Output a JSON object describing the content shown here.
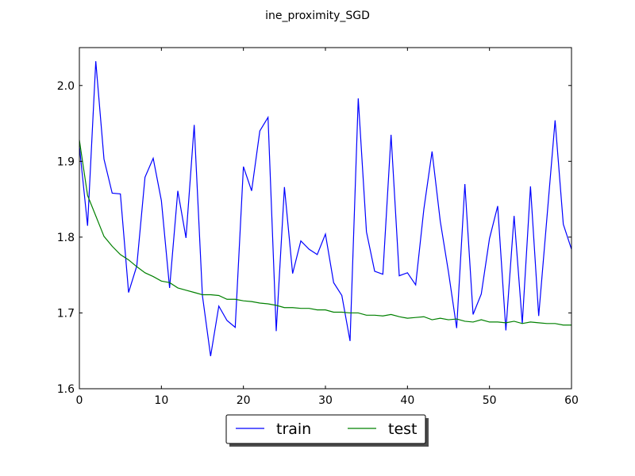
{
  "chart_data": {
    "type": "line",
    "title": "ine_proximity_SGD",
    "xlabel": "",
    "ylabel": "",
    "xlim": [
      0,
      60
    ],
    "ylim": [
      1.6,
      2.05
    ],
    "xticks": [
      0,
      10,
      20,
      30,
      40,
      50,
      60
    ],
    "yticks": [
      1.6,
      1.7,
      1.8,
      1.9,
      2.0
    ],
    "xtick_labels": [
      "0",
      "10",
      "20",
      "30",
      "40",
      "50",
      "60"
    ],
    "ytick_labels": [
      "1.6",
      "1.7",
      "1.8",
      "1.9",
      "2.0"
    ],
    "grid": false,
    "legend_position": "below-center",
    "x": [
      0,
      1,
      2,
      3,
      4,
      5,
      6,
      7,
      8,
      9,
      10,
      11,
      12,
      13,
      14,
      15,
      16,
      17,
      18,
      19,
      20,
      21,
      22,
      23,
      24,
      25,
      26,
      27,
      28,
      29,
      30,
      31,
      32,
      33,
      34,
      35,
      36,
      37,
      38,
      39,
      40,
      41,
      42,
      43,
      44,
      45,
      46,
      47,
      48,
      49,
      50,
      51,
      52,
      53,
      54,
      55,
      56,
      57,
      58,
      59,
      60
    ],
    "series": [
      {
        "name": "train",
        "color": "#0000ff",
        "values": [
          1.92,
          1.815,
          2.032,
          1.903,
          1.858,
          1.857,
          1.727,
          1.762,
          1.879,
          1.904,
          1.848,
          1.733,
          1.861,
          1.799,
          1.948,
          1.723,
          1.643,
          1.709,
          1.69,
          1.681,
          1.893,
          1.861,
          1.94,
          1.958,
          1.676,
          1.866,
          1.752,
          1.795,
          1.784,
          1.777,
          1.804,
          1.74,
          1.723,
          1.663,
          1.983,
          1.807,
          1.755,
          1.751,
          1.935,
          1.749,
          1.753,
          1.737,
          1.837,
          1.913,
          1.821,
          1.754,
          1.68,
          1.87,
          1.698,
          1.725,
          1.798,
          1.841,
          1.677,
          1.828,
          1.686,
          1.867,
          1.696,
          1.825,
          1.954,
          1.817,
          1.784
        ]
      },
      {
        "name": "test",
        "color": "#008000",
        "values": [
          1.928,
          1.855,
          1.828,
          1.801,
          1.788,
          1.777,
          1.77,
          1.761,
          1.753,
          1.748,
          1.742,
          1.74,
          1.733,
          1.73,
          1.727,
          1.724,
          1.724,
          1.723,
          1.718,
          1.718,
          1.716,
          1.715,
          1.713,
          1.712,
          1.71,
          1.707,
          1.707,
          1.706,
          1.706,
          1.704,
          1.704,
          1.701,
          1.701,
          1.7,
          1.7,
          1.697,
          1.697,
          1.696,
          1.698,
          1.695,
          1.693,
          1.694,
          1.695,
          1.691,
          1.693,
          1.691,
          1.692,
          1.689,
          1.688,
          1.691,
          1.688,
          1.688,
          1.687,
          1.689,
          1.686,
          1.688,
          1.687,
          1.686,
          1.686,
          1.684,
          1.684
        ]
      }
    ]
  }
}
